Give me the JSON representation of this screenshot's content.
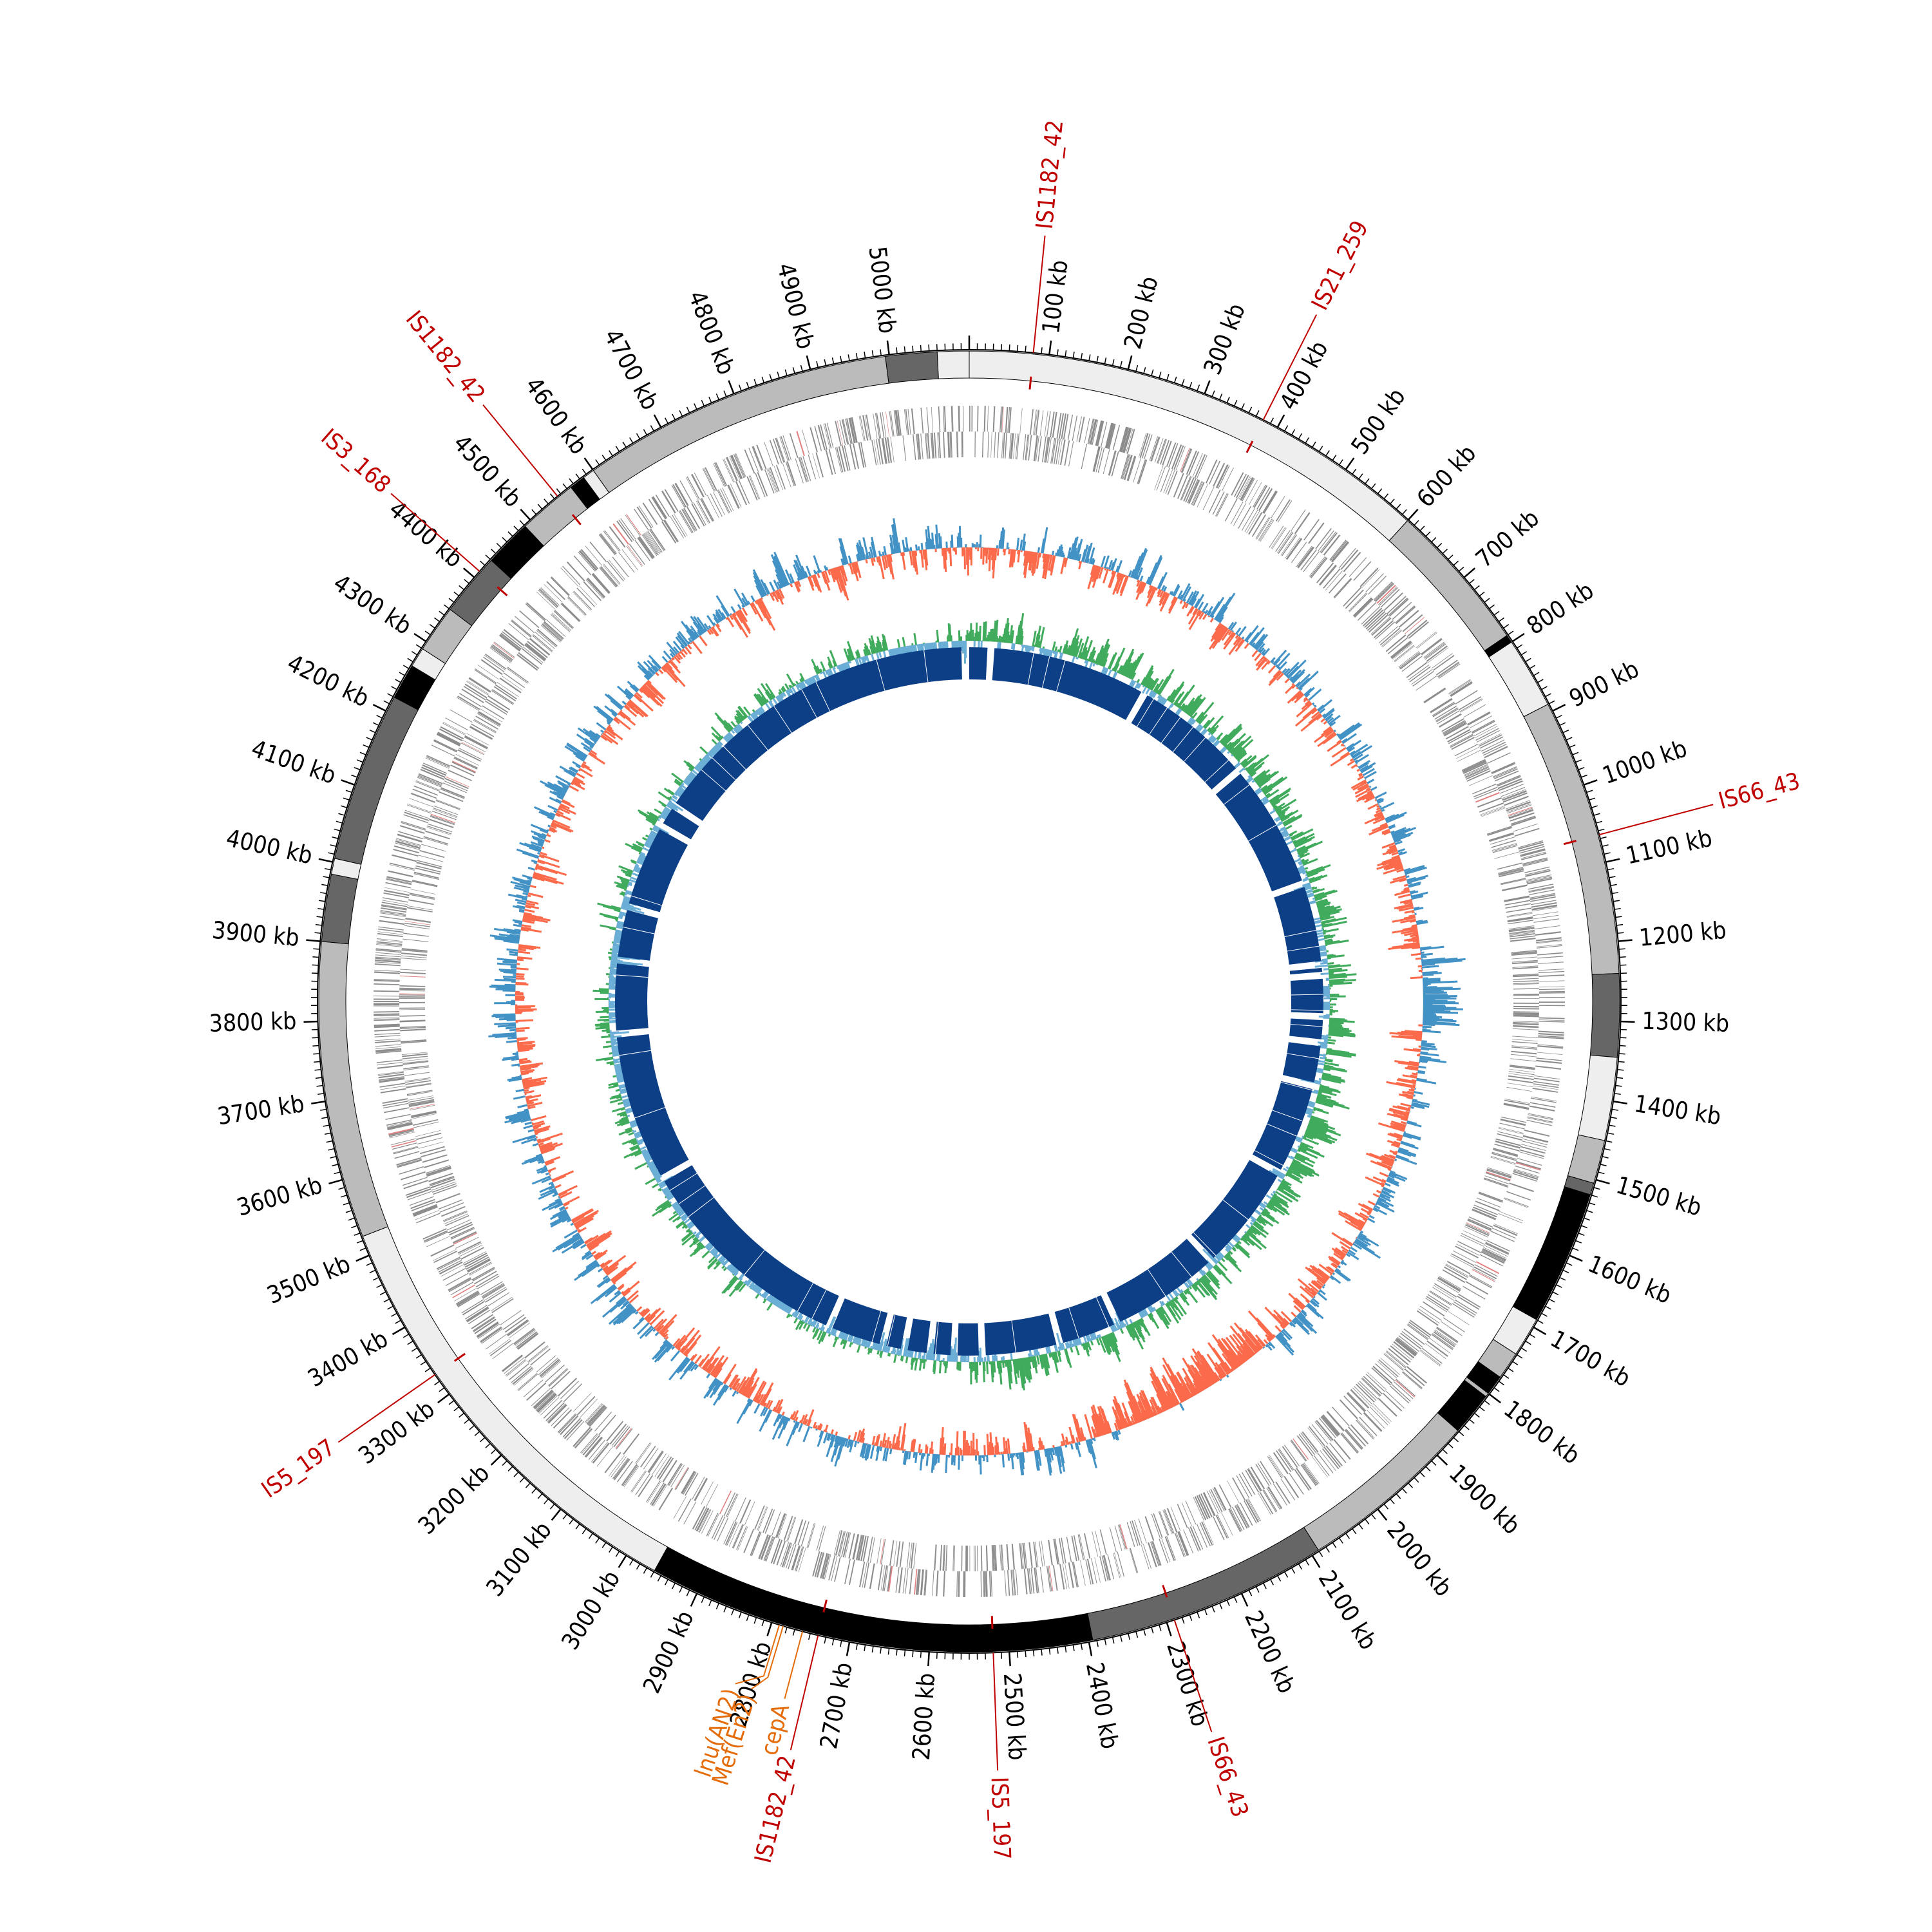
{
  "genome": {
    "length_kb": 5100,
    "tick_suffix": " kb",
    "tick_labels": [
      100,
      200,
      300,
      400,
      500,
      600,
      700,
      800,
      900,
      1000,
      1100,
      1200,
      1300,
      1400,
      1500,
      1600,
      1700,
      1800,
      1900,
      2000,
      2100,
      2200,
      2300,
      2400,
      2500,
      2600,
      2700,
      2800,
      2900,
      3000,
      3100,
      3200,
      3300,
      3400,
      3500,
      3600,
      3700,
      3800,
      3900,
      4000,
      4100,
      4200,
      4300,
      4400,
      4500,
      4600,
      4700,
      4800,
      4900,
      5000
    ]
  },
  "contigs": [
    {
      "start": 0,
      "end": 600,
      "shade": "#eeeeee"
    },
    {
      "start": 600,
      "end": 790,
      "shade": "#bbbbbb"
    },
    {
      "start": 790,
      "end": 800,
      "shade": "#000000"
    },
    {
      "start": 800,
      "end": 890,
      "shade": "#eeeeee"
    },
    {
      "start": 890,
      "end": 1240,
      "shade": "#bbbbbb"
    },
    {
      "start": 1240,
      "end": 1345,
      "shade": "#666666"
    },
    {
      "start": 1345,
      "end": 1450,
      "shade": "#eeeeee"
    },
    {
      "start": 1450,
      "end": 1505,
      "shade": "#bbbbbb"
    },
    {
      "start": 1505,
      "end": 1520,
      "shade": "#666666"
    },
    {
      "start": 1520,
      "end": 1690,
      "shade": "#000000"
    },
    {
      "start": 1690,
      "end": 1740,
      "shade": "#eeeeee"
    },
    {
      "start": 1740,
      "end": 1775,
      "shade": "#bbbbbb"
    },
    {
      "start": 1775,
      "end": 1800,
      "shade": "#000000"
    },
    {
      "start": 1800,
      "end": 1805,
      "shade": "#bbbbbb"
    },
    {
      "start": 1805,
      "end": 1860,
      "shade": "#000000"
    },
    {
      "start": 1860,
      "end": 2090,
      "shade": "#bbbbbb"
    },
    {
      "start": 2090,
      "end": 2395,
      "shade": "#666666"
    },
    {
      "start": 2395,
      "end": 2960,
      "shade": "#000000"
    },
    {
      "start": 2960,
      "end": 3525,
      "shade": "#eeeeee"
    },
    {
      "start": 3525,
      "end": 3900,
      "shade": "#bbbbbb"
    },
    {
      "start": 3900,
      "end": 3985,
      "shade": "#666666"
    },
    {
      "start": 3985,
      "end": 4005,
      "shade": "#eeeeee"
    },
    {
      "start": 4005,
      "end": 4220,
      "shade": "#666666"
    },
    {
      "start": 4220,
      "end": 4265,
      "shade": "#000000"
    },
    {
      "start": 4265,
      "end": 4290,
      "shade": "#eeeeee"
    },
    {
      "start": 4290,
      "end": 4350,
      "shade": "#bbbbbb"
    },
    {
      "start": 4350,
      "end": 4430,
      "shade": "#666666"
    },
    {
      "start": 4430,
      "end": 4490,
      "shade": "#000000"
    },
    {
      "start": 4490,
      "end": 4565,
      "shade": "#bbbbbb"
    },
    {
      "start": 4565,
      "end": 4585,
      "shade": "#000000"
    },
    {
      "start": 4585,
      "end": 4600,
      "shade": "#eeeeee"
    },
    {
      "start": 4600,
      "end": 4995,
      "shade": "#bbbbbb"
    },
    {
      "start": 4995,
      "end": 5060,
      "shade": "#666666"
    },
    {
      "start": 5060,
      "end": 5100,
      "shade": "#eeeeee"
    }
  ],
  "insertion_sequences": [
    {
      "label": "IS1182_42",
      "position_kb": 80
    },
    {
      "label": "IS21_259",
      "position_kb": 380
    },
    {
      "label": "IS66_43",
      "position_kb": 1065
    },
    {
      "label": "IS66_43",
      "position_kb": 2290
    },
    {
      "label": "IS5_197",
      "position_kb": 2520
    },
    {
      "label": "IS1182_42",
      "position_kb": 2740
    },
    {
      "label": "IS5_197",
      "position_kb": 3330
    },
    {
      "label": "IS3_168",
      "position_kb": 4410
    },
    {
      "label": "IS1182_42",
      "position_kb": 4545
    }
  ],
  "resistance_genes": [
    {
      "label": "cepA",
      "position_kb": 2760
    },
    {
      "label": "Mef(En2)",
      "position_kb": 2785
    },
    {
      "label": "lnu(AN2)",
      "position_kb": 2790
    }
  ],
  "synteny_gaps_kb": [
    50,
    420,
    700,
    1000,
    1190,
    1215,
    1310,
    1370,
    1470,
    1685,
    1940,
    2200,
    2340,
    2520,
    2585,
    2640,
    2700,
    2750,
    2880,
    3400,
    3750,
    3920,
    4045,
    4245,
    4300,
    5090
  ],
  "colors": {
    "is_label": "#c00000",
    "arg_label": "#e46c0a",
    "gc_content_above": "#4292c6",
    "gc_content_below": "#fb6a4a",
    "gc_skew_above": "#41ab5d",
    "gc_skew_below": "#6baed6",
    "synteny": "#0d3f87",
    "gene_forward": "#8c8c8c",
    "gene_reverse": "#8c8c8c"
  }
}
